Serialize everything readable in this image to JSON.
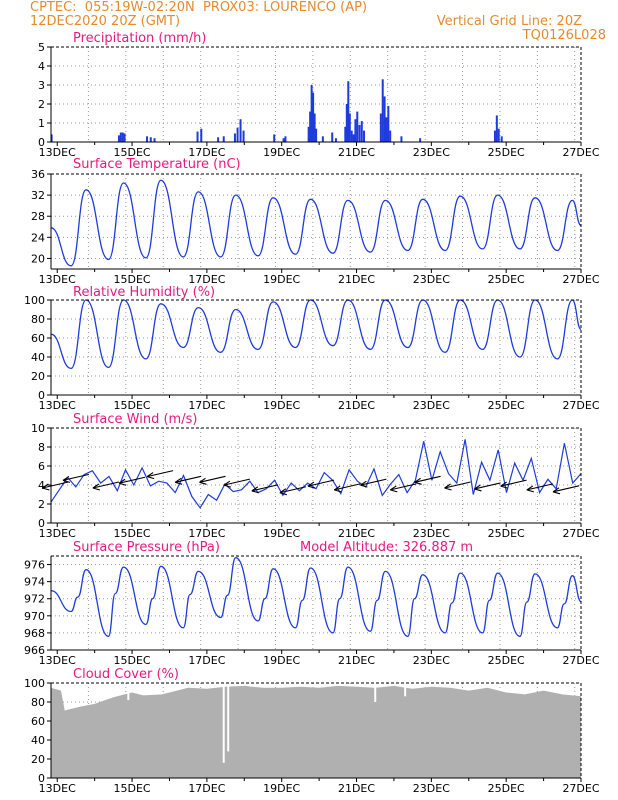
{
  "header": {
    "line1_left": "CPTEC:  055:19W-02:20N  PROX03: LOURENCO (AP)",
    "line2_left": "12DEC2020 20Z (GMT)",
    "line2_right": "Vertical Grid Line: 20Z",
    "line3_right": "TQ0126L028"
  },
  "colors": {
    "header": "#e68a2e",
    "panel_title": "#e6197f",
    "series": "#1f3bdc",
    "cloud": "#b0b0b0",
    "wind_arrow": "#000000"
  },
  "x_axis": {
    "start_day": 12,
    "start_hour": 20,
    "end_day": 27,
    "end_hour": 0,
    "ticks": [
      "13DEC",
      "15DEC",
      "17DEC",
      "19DEC",
      "21DEC",
      "23DEC",
      "25DEC",
      "27DEC"
    ],
    "vertical_grid_hour": "20Z"
  },
  "chart_data": [
    {
      "id": "precip",
      "type": "bar",
      "title": "Precipitation (mm/h)",
      "ylim": [
        0,
        5
      ],
      "yticks": [
        "0",
        "1",
        "2",
        "3",
        "4",
        "5"
      ],
      "x_unit": "days since 12DEC2020 00Z",
      "points": [
        [
          12.85,
          0.4
        ],
        [
          14.65,
          0.35
        ],
        [
          14.7,
          0.5
        ],
        [
          14.75,
          0.5
        ],
        [
          14.8,
          0.45
        ],
        [
          15.4,
          0.3
        ],
        [
          15.5,
          0.25
        ],
        [
          15.6,
          0.2
        ],
        [
          16.75,
          0.55
        ],
        [
          16.85,
          0.7
        ],
        [
          17.3,
          0.25
        ],
        [
          17.45,
          0.3
        ],
        [
          17.75,
          0.45
        ],
        [
          17.82,
          0.75
        ],
        [
          17.9,
          1.2
        ],
        [
          17.98,
          0.6
        ],
        [
          18.8,
          0.4
        ],
        [
          19.05,
          0.2
        ],
        [
          19.1,
          0.3
        ],
        [
          19.72,
          0.8
        ],
        [
          19.76,
          1.6
        ],
        [
          19.8,
          3.0
        ],
        [
          19.84,
          2.6
        ],
        [
          19.88,
          1.5
        ],
        [
          19.92,
          0.7
        ],
        [
          20.1,
          0.3
        ],
        [
          20.35,
          0.5
        ],
        [
          20.45,
          0.2
        ],
        [
          20.7,
          0.8
        ],
        [
          20.74,
          2.0
        ],
        [
          20.78,
          3.2
        ],
        [
          20.82,
          1.5
        ],
        [
          20.87,
          0.6
        ],
        [
          20.92,
          0.4
        ],
        [
          20.97,
          1.2
        ],
        [
          21.02,
          1.6
        ],
        [
          21.08,
          0.9
        ],
        [
          21.14,
          1.1
        ],
        [
          21.2,
          0.6
        ],
        [
          21.65,
          1.5
        ],
        [
          21.7,
          3.3
        ],
        [
          21.75,
          2.4
        ],
        [
          21.8,
          1.3
        ],
        [
          21.85,
          1.9
        ],
        [
          21.9,
          0.6
        ],
        [
          22.2,
          0.3
        ],
        [
          22.7,
          0.2
        ],
        [
          24.7,
          0.6
        ],
        [
          24.75,
          1.4
        ],
        [
          24.8,
          0.7
        ],
        [
          24.88,
          0.3
        ]
      ]
    },
    {
      "id": "temp",
      "type": "line",
      "title": "Surface Temperature (nC)",
      "ylim": [
        18,
        36
      ],
      "yticks": [
        "20",
        "24",
        "28",
        "32",
        "36"
      ],
      "maxima": [
        33.0,
        34.3,
        34.8,
        32.6,
        32.0,
        31.5,
        31.2,
        31.0,
        31.0,
        31.2,
        31.8,
        32.0,
        31.5,
        31.0,
        31.0
      ],
      "minima": [
        18.6,
        19.8,
        20.1,
        20.3,
        20.3,
        20.5,
        20.8,
        21.0,
        21.2,
        21.5,
        21.5,
        21.8,
        21.8,
        21.5
      ]
    },
    {
      "id": "rh",
      "type": "line",
      "title": "Relative Humidity (%)",
      "ylim": [
        0,
        100
      ],
      "yticks": [
        "0",
        "20",
        "40",
        "60",
        "80",
        "100"
      ],
      "maxima": [
        100,
        100,
        96,
        92,
        90,
        98,
        100,
        100,
        100,
        100,
        100,
        100,
        100,
        100,
        100
      ],
      "minima": [
        28,
        29,
        38,
        50,
        45,
        48,
        50,
        52,
        48,
        50,
        45,
        48,
        40,
        38
      ]
    },
    {
      "id": "wind",
      "type": "line",
      "title": "Surface Wind (m/s)",
      "ylim": [
        0,
        10
      ],
      "yticks": [
        "0",
        "2",
        "4",
        "6",
        "8",
        "10"
      ],
      "speed": [
        2.2,
        3.5,
        4.8,
        3.8,
        5.1,
        5.5,
        4.2,
        4.9,
        3.4,
        5.6,
        4.0,
        5.8,
        3.9,
        4.4,
        4.2,
        3.2,
        5.0,
        2.8,
        1.6,
        3.0,
        2.4,
        4.1,
        3.3,
        3.5,
        4.4,
        3.2,
        3.6,
        4.5,
        2.9,
        4.2,
        3.4,
        4.2,
        3.6,
        5.3,
        4.5,
        3.1,
        5.6,
        4.4,
        3.8,
        5.7,
        2.9,
        4.1,
        5.1,
        3.2,
        4.5,
        8.6,
        4.5,
        7.5,
        5.2,
        4.2,
        8.8,
        3.0,
        6.4,
        4.5,
        7.7,
        3.2,
        6.3,
        4.5,
        6.8,
        3.2,
        4.6,
        3.6,
        8.4,
        4.2,
        5.2
      ],
      "arrows": [
        [
          12.95,
          4.0,
          250
        ],
        [
          13.5,
          4.8,
          255
        ],
        [
          14.3,
          4.0,
          245
        ],
        [
          15.0,
          4.5,
          250
        ],
        [
          15.75,
          5.2,
          240
        ],
        [
          16.5,
          4.6,
          250
        ],
        [
          17.15,
          4.6,
          255
        ],
        [
          17.8,
          4.3,
          245
        ],
        [
          18.55,
          3.7,
          250
        ],
        [
          19.3,
          3.5,
          245
        ],
        [
          20.05,
          4.2,
          250
        ],
        [
          20.75,
          3.8,
          245
        ],
        [
          21.45,
          4.3,
          250
        ],
        [
          22.25,
          3.8,
          255
        ],
        [
          22.9,
          4.6,
          245
        ],
        [
          23.7,
          4.0,
          250
        ],
        [
          24.5,
          3.9,
          245
        ],
        [
          25.2,
          4.2,
          250
        ],
        [
          25.9,
          3.8,
          245
        ],
        [
          26.6,
          3.6,
          250
        ]
      ]
    },
    {
      "id": "press",
      "type": "line",
      "title": "Surface Pressure (hPa)",
      "annotation": "Model Altitude: 326.887 m",
      "ylim": [
        966,
        977
      ],
      "yticks": [
        "966",
        "968",
        "970",
        "972",
        "974",
        "976"
      ],
      "maxima": [
        975.4,
        975.7,
        975.8,
        975.2,
        976.8,
        975.5,
        975.6,
        975.7,
        975.2,
        974.8,
        975.0,
        975.0,
        974.9,
        974.7
      ],
      "secondary_maxima": [
        972.2,
        972.6,
        972.0,
        972.5,
        972.4,
        972.0,
        971.8,
        972.0,
        971.8,
        972.0,
        971.5,
        971.8,
        971.6,
        971.4
      ],
      "minima": [
        970.5,
        967.6,
        969.0,
        968.6,
        969.8,
        969.4,
        968.6,
        968.0,
        968.2,
        967.6,
        968.0,
        968.0,
        967.6,
        968.6
      ]
    },
    {
      "id": "cloud",
      "type": "area",
      "title": "Cloud Cover (%)",
      "ylim": [
        0,
        100
      ],
      "yticks": [
        "0",
        "20",
        "40",
        "60",
        "80",
        "100"
      ],
      "x": [
        12.83,
        13.1,
        13.2,
        13.6,
        14.0,
        14.5,
        15.0,
        15.3,
        15.8,
        16.5,
        17.0,
        17.5,
        18.0,
        18.5,
        19.0,
        19.5,
        20.0,
        20.5,
        21.0,
        21.5,
        22.0,
        22.5,
        23.0,
        23.5,
        24.0,
        24.5,
        25.0,
        25.5,
        26.0,
        26.5,
        27.0
      ],
      "values": [
        95,
        92,
        71,
        75,
        78,
        85,
        90,
        87,
        88,
        95,
        94,
        96,
        97,
        95,
        95,
        96,
        95,
        97,
        96,
        95,
        97,
        94,
        96,
        95,
        92,
        95,
        90,
        88,
        92,
        88,
        86
      ],
      "dips": [
        [
          17.45,
          16
        ],
        [
          17.57,
          28
        ],
        [
          14.9,
          82
        ],
        [
          21.5,
          80
        ],
        [
          22.3,
          86
        ]
      ]
    }
  ]
}
